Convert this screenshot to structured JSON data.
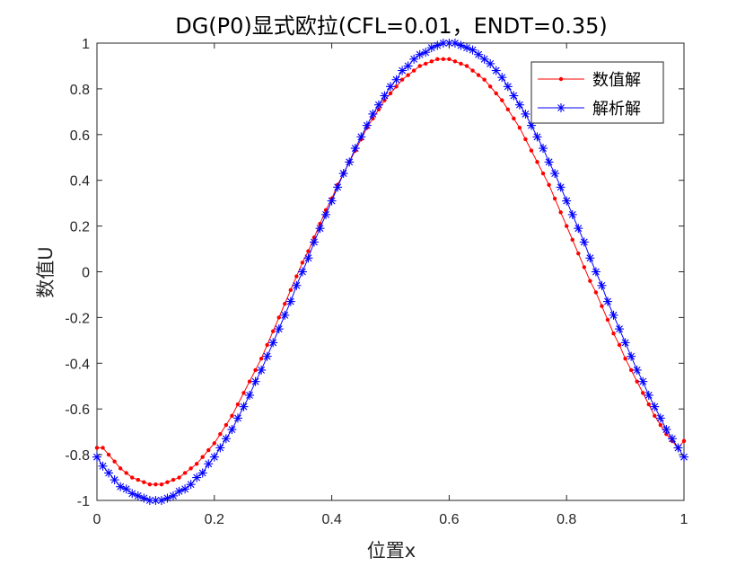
{
  "chart_data": {
    "type": "line",
    "title": "DG(P0)显式欧拉(CFL=0.01，ENDT=0.35)",
    "xlabel": "位置x",
    "ylabel": "数值U",
    "xlim": [
      0,
      1
    ],
    "ylim": [
      -1,
      1
    ],
    "xticks": [
      "0",
      "0.2",
      "0.4",
      "0.6",
      "0.8",
      "1"
    ],
    "yticks": [
      "-1",
      "-0.8",
      "-0.6",
      "-0.4",
      "-0.2",
      "0",
      "0.2",
      "0.4",
      "0.6",
      "0.8",
      "1"
    ],
    "grid": false,
    "legend_position": "top-right",
    "series": [
      {
        "name": "数值解",
        "color": "#ff0000",
        "marker": "dot",
        "line": "solid",
        "x": [
          0,
          0.01,
          0.02,
          0.03,
          0.04,
          0.05,
          0.06,
          0.07,
          0.08,
          0.09,
          0.1,
          0.11,
          0.12,
          0.13,
          0.14,
          0.15,
          0.16,
          0.17,
          0.18,
          0.19,
          0.2,
          0.21,
          0.22,
          0.23,
          0.24,
          0.25,
          0.26,
          0.27,
          0.28,
          0.29,
          0.3,
          0.31,
          0.32,
          0.33,
          0.34,
          0.35,
          0.36,
          0.37,
          0.38,
          0.39,
          0.4,
          0.41,
          0.42,
          0.43,
          0.44,
          0.45,
          0.46,
          0.47,
          0.48,
          0.49,
          0.5,
          0.51,
          0.52,
          0.53,
          0.54,
          0.55,
          0.56,
          0.57,
          0.58,
          0.59,
          0.6,
          0.61,
          0.62,
          0.63,
          0.64,
          0.65,
          0.66,
          0.67,
          0.68,
          0.69,
          0.7,
          0.71,
          0.72,
          0.73,
          0.74,
          0.75,
          0.76,
          0.77,
          0.78,
          0.79,
          0.8,
          0.81,
          0.82,
          0.83,
          0.84,
          0.85,
          0.86,
          0.87,
          0.88,
          0.89,
          0.9,
          0.91,
          0.92,
          0.93,
          0.94,
          0.95,
          0.96,
          0.97,
          0.98,
          0.99,
          1.0
        ],
        "values": [
          -0.77,
          -0.77,
          -0.8,
          -0.83,
          -0.86,
          -0.88,
          -0.9,
          -0.91,
          -0.92,
          -0.93,
          -0.93,
          -0.93,
          -0.92,
          -0.91,
          -0.9,
          -0.88,
          -0.86,
          -0.84,
          -0.81,
          -0.78,
          -0.75,
          -0.71,
          -0.67,
          -0.63,
          -0.58,
          -0.53,
          -0.48,
          -0.43,
          -0.38,
          -0.32,
          -0.26,
          -0.2,
          -0.14,
          -0.08,
          -0.02,
          0.04,
          0.09,
          0.15,
          0.21,
          0.27,
          0.32,
          0.38,
          0.43,
          0.48,
          0.53,
          0.58,
          0.63,
          0.67,
          0.71,
          0.75,
          0.78,
          0.81,
          0.84,
          0.86,
          0.88,
          0.9,
          0.91,
          0.92,
          0.93,
          0.93,
          0.93,
          0.92,
          0.91,
          0.9,
          0.88,
          0.86,
          0.84,
          0.81,
          0.78,
          0.75,
          0.71,
          0.67,
          0.63,
          0.58,
          0.53,
          0.48,
          0.43,
          0.38,
          0.32,
          0.26,
          0.2,
          0.14,
          0.08,
          0.02,
          -0.04,
          -0.09,
          -0.15,
          -0.21,
          -0.27,
          -0.32,
          -0.38,
          -0.43,
          -0.48,
          -0.53,
          -0.58,
          -0.63,
          -0.67,
          -0.71,
          -0.74,
          -0.77,
          -0.74
        ]
      },
      {
        "name": "解析解",
        "color": "#0000ff",
        "marker": "asterisk",
        "line": "solid",
        "x": [
          0,
          0.01,
          0.02,
          0.03,
          0.04,
          0.05,
          0.06,
          0.07,
          0.08,
          0.09,
          0.1,
          0.11,
          0.12,
          0.13,
          0.14,
          0.15,
          0.16,
          0.17,
          0.18,
          0.19,
          0.2,
          0.21,
          0.22,
          0.23,
          0.24,
          0.25,
          0.26,
          0.27,
          0.28,
          0.29,
          0.3,
          0.31,
          0.32,
          0.33,
          0.34,
          0.35,
          0.36,
          0.37,
          0.38,
          0.39,
          0.4,
          0.41,
          0.42,
          0.43,
          0.44,
          0.45,
          0.46,
          0.47,
          0.48,
          0.49,
          0.5,
          0.51,
          0.52,
          0.53,
          0.54,
          0.55,
          0.56,
          0.57,
          0.58,
          0.59,
          0.6,
          0.61,
          0.62,
          0.63,
          0.64,
          0.65,
          0.66,
          0.67,
          0.68,
          0.69,
          0.7,
          0.71,
          0.72,
          0.73,
          0.74,
          0.75,
          0.76,
          0.77,
          0.78,
          0.79,
          0.8,
          0.81,
          0.82,
          0.83,
          0.84,
          0.85,
          0.86,
          0.87,
          0.88,
          0.89,
          0.9,
          0.91,
          0.92,
          0.93,
          0.94,
          0.95,
          0.96,
          0.97,
          0.98,
          0.99,
          1.0
        ],
        "values": [
          -0.81,
          -0.85,
          -0.88,
          -0.91,
          -0.94,
          -0.95,
          -0.97,
          -0.98,
          -0.99,
          -1.0,
          -1.0,
          -1.0,
          -0.99,
          -0.98,
          -0.96,
          -0.95,
          -0.93,
          -0.9,
          -0.88,
          -0.84,
          -0.81,
          -0.77,
          -0.73,
          -0.69,
          -0.64,
          -0.59,
          -0.54,
          -0.48,
          -0.43,
          -0.37,
          -0.31,
          -0.25,
          -0.19,
          -0.13,
          -0.06,
          0.0,
          0.06,
          0.13,
          0.19,
          0.25,
          0.31,
          0.37,
          0.43,
          0.48,
          0.54,
          0.59,
          0.64,
          0.69,
          0.73,
          0.77,
          0.81,
          0.84,
          0.88,
          0.9,
          0.93,
          0.95,
          0.96,
          0.98,
          0.99,
          1.0,
          1.0,
          1.0,
          0.99,
          0.98,
          0.97,
          0.95,
          0.93,
          0.91,
          0.88,
          0.85,
          0.81,
          0.77,
          0.73,
          0.69,
          0.64,
          0.59,
          0.54,
          0.48,
          0.43,
          0.37,
          0.31,
          0.25,
          0.19,
          0.13,
          0.06,
          0.0,
          -0.06,
          -0.13,
          -0.19,
          -0.25,
          -0.31,
          -0.37,
          -0.43,
          -0.48,
          -0.54,
          -0.59,
          -0.64,
          -0.69,
          -0.73,
          -0.77,
          -0.81
        ]
      }
    ]
  }
}
